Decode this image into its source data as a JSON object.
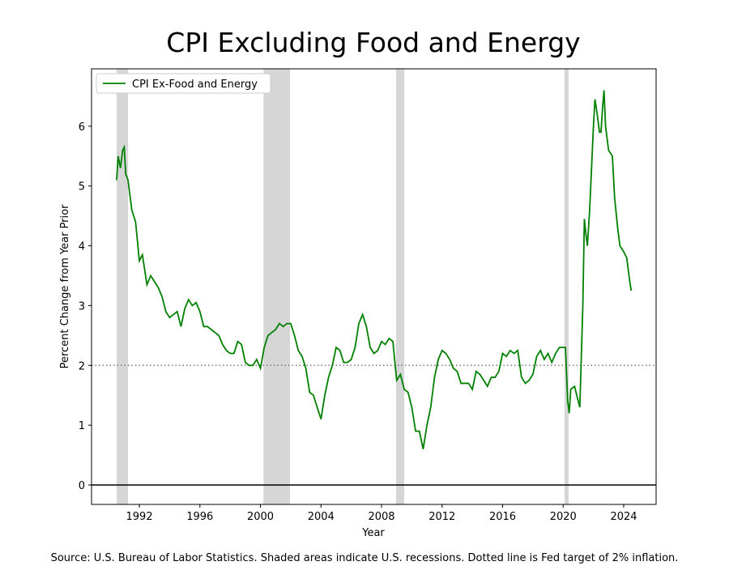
{
  "chart_data": {
    "type": "line",
    "title": "CPI Excluding Food and Energy",
    "xlabel": "Year",
    "ylabel": "Percent Change from Year Prior",
    "footnote": "Source: U.S. Bureau of Labor Statistics. Shaded areas indicate U.S. recessions. Dotted line is Fed target of 2% inflation.",
    "xlim": [
      1988.84,
      2026.14
    ],
    "ylim": [
      -0.325,
      6.96
    ],
    "xticks": [
      1992,
      1996,
      2000,
      2004,
      2008,
      2012,
      2016,
      2020,
      2024
    ],
    "yticks": [
      0,
      1,
      2,
      3,
      4,
      5,
      6
    ],
    "legend": "upper left",
    "recessions": [
      [
        1990.5,
        1991.25
      ],
      [
        2000.2,
        2001.95
      ],
      [
        2008.96,
        2009.5
      ],
      [
        2020.09,
        2020.36
      ]
    ],
    "recession_color": "#d6d6d6",
    "target": 2,
    "zero_line": 0,
    "x": [
      1990.5,
      1990.6,
      1990.75,
      1990.9,
      1991.0,
      1991.1,
      1991.25,
      1991.5,
      1991.75,
      1992.0,
      1992.2,
      1992.5,
      1992.75,
      1993.0,
      1993.25,
      1993.5,
      1993.75,
      1994.0,
      1994.25,
      1994.5,
      1994.75,
      1995.0,
      1995.25,
      1995.5,
      1995.75,
      1996.0,
      1996.25,
      1996.5,
      1996.75,
      1997.0,
      1997.25,
      1997.5,
      1997.75,
      1998.0,
      1998.25,
      1998.5,
      1998.75,
      1999.0,
      1999.25,
      1999.5,
      1999.75,
      2000.0,
      2000.25,
      2000.5,
      2000.75,
      2001.0,
      2001.25,
      2001.5,
      2001.75,
      2002.0,
      2002.25,
      2002.5,
      2002.75,
      2003.0,
      2003.25,
      2003.5,
      2003.75,
      2004.0,
      2004.25,
      2004.5,
      2004.75,
      2005.0,
      2005.25,
      2005.5,
      2005.75,
      2006.0,
      2006.25,
      2006.5,
      2006.75,
      2007.0,
      2007.25,
      2007.5,
      2007.75,
      2008.0,
      2008.25,
      2008.5,
      2008.75,
      2009.0,
      2009.25,
      2009.5,
      2009.75,
      2010.0,
      2010.25,
      2010.5,
      2010.75,
      2011.0,
      2011.25,
      2011.5,
      2011.75,
      2012.0,
      2012.25,
      2012.5,
      2012.75,
      2013.0,
      2013.25,
      2013.5,
      2013.75,
      2014.0,
      2014.25,
      2014.5,
      2014.75,
      2015.0,
      2015.25,
      2015.5,
      2015.75,
      2016.0,
      2016.25,
      2016.5,
      2016.75,
      2017.0,
      2017.25,
      2017.5,
      2017.75,
      2018.0,
      2018.25,
      2018.5,
      2018.75,
      2019.0,
      2019.25,
      2019.5,
      2019.75,
      2020.0,
      2020.15,
      2020.3,
      2020.4,
      2020.5,
      2020.75,
      2021.0,
      2021.1,
      2021.3,
      2021.4,
      2021.5,
      2021.6,
      2021.75,
      2022.0,
      2022.1,
      2022.25,
      2022.4,
      2022.5,
      2022.6,
      2022.7,
      2022.8,
      2023.0,
      2023.25,
      2023.4,
      2023.6,
      2023.75,
      2024.0,
      2024.2,
      2024.4,
      2024.5
    ],
    "series": [
      {
        "name": "CPI Ex-Food and Energy",
        "color": "#008000",
        "values": [
          5.1,
          5.5,
          5.3,
          5.6,
          5.65,
          5.2,
          5.1,
          4.6,
          4.4,
          3.75,
          3.85,
          3.35,
          3.5,
          3.4,
          3.3,
          3.15,
          2.9,
          2.8,
          2.85,
          2.9,
          2.65,
          2.95,
          3.1,
          3.0,
          3.05,
          2.9,
          2.65,
          2.65,
          2.6,
          2.55,
          2.5,
          2.35,
          2.25,
          2.2,
          2.2,
          2.4,
          2.35,
          2.05,
          2.0,
          2.0,
          2.1,
          1.95,
          2.3,
          2.5,
          2.55,
          2.6,
          2.7,
          2.65,
          2.7,
          2.7,
          2.5,
          2.25,
          2.15,
          1.95,
          1.55,
          1.5,
          1.3,
          1.1,
          1.5,
          1.8,
          2.0,
          2.3,
          2.25,
          2.05,
          2.05,
          2.1,
          2.3,
          2.7,
          2.85,
          2.65,
          2.3,
          2.2,
          2.25,
          2.4,
          2.35,
          2.45,
          2.4,
          1.75,
          1.85,
          1.6,
          1.55,
          1.3,
          0.9,
          0.9,
          0.6,
          1.0,
          1.3,
          1.8,
          2.1,
          2.25,
          2.2,
          2.1,
          1.95,
          1.9,
          1.7,
          1.7,
          1.7,
          1.6,
          1.9,
          1.85,
          1.75,
          1.65,
          1.8,
          1.8,
          1.9,
          2.2,
          2.15,
          2.25,
          2.2,
          2.25,
          1.8,
          1.7,
          1.75,
          1.85,
          2.15,
          2.25,
          2.1,
          2.2,
          2.05,
          2.2,
          2.3,
          2.3,
          2.3,
          1.4,
          1.2,
          1.6,
          1.65,
          1.4,
          1.3,
          3.0,
          4.45,
          4.2,
          4.0,
          4.6,
          6.0,
          6.45,
          6.2,
          5.9,
          5.9,
          6.3,
          6.6,
          6.0,
          5.6,
          5.5,
          4.8,
          4.3,
          4.0,
          3.9,
          3.8,
          3.4,
          3.25
        ]
      }
    ]
  }
}
